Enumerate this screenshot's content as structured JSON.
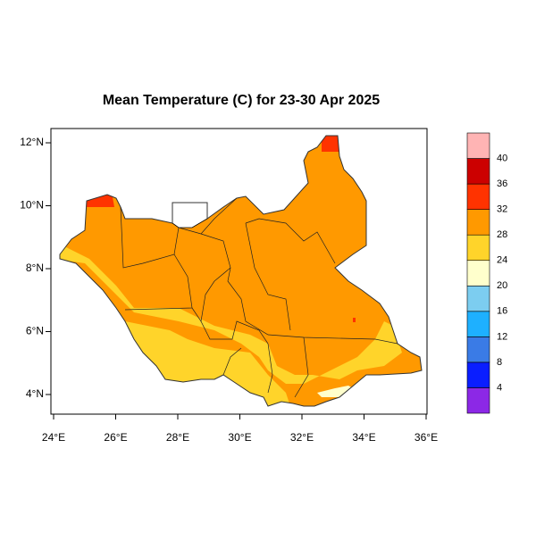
{
  "title": "Mean Temperature (C) for 23-30 Apr 2025",
  "lon_ticks": [
    {
      "value": 24,
      "label": "24°E"
    },
    {
      "value": 26,
      "label": "26°E"
    },
    {
      "value": 28,
      "label": "28°E"
    },
    {
      "value": 30,
      "label": "30°E"
    },
    {
      "value": 32,
      "label": "32°E"
    },
    {
      "value": 34,
      "label": "34°E"
    },
    {
      "value": 36,
      "label": "36°E"
    }
  ],
  "lat_ticks": [
    {
      "value": 4,
      "label": "4°N"
    },
    {
      "value": 6,
      "label": "6°N"
    },
    {
      "value": 8,
      "label": "8°N"
    },
    {
      "value": 10,
      "label": "10°N"
    },
    {
      "value": 12,
      "label": "12°N"
    }
  ],
  "colorbar": {
    "levels": [
      4,
      8,
      12,
      16,
      20,
      24,
      28,
      32,
      36,
      40
    ],
    "colors": [
      "#8c28e6",
      "#0a1eff",
      "#3a7be6",
      "#1eb0ff",
      "#7ccdf0",
      "#ffffcc",
      "#ffd42a",
      "#ff9900",
      "#ff3300",
      "#cc0000",
      "#ffb4b4"
    ]
  }
}
